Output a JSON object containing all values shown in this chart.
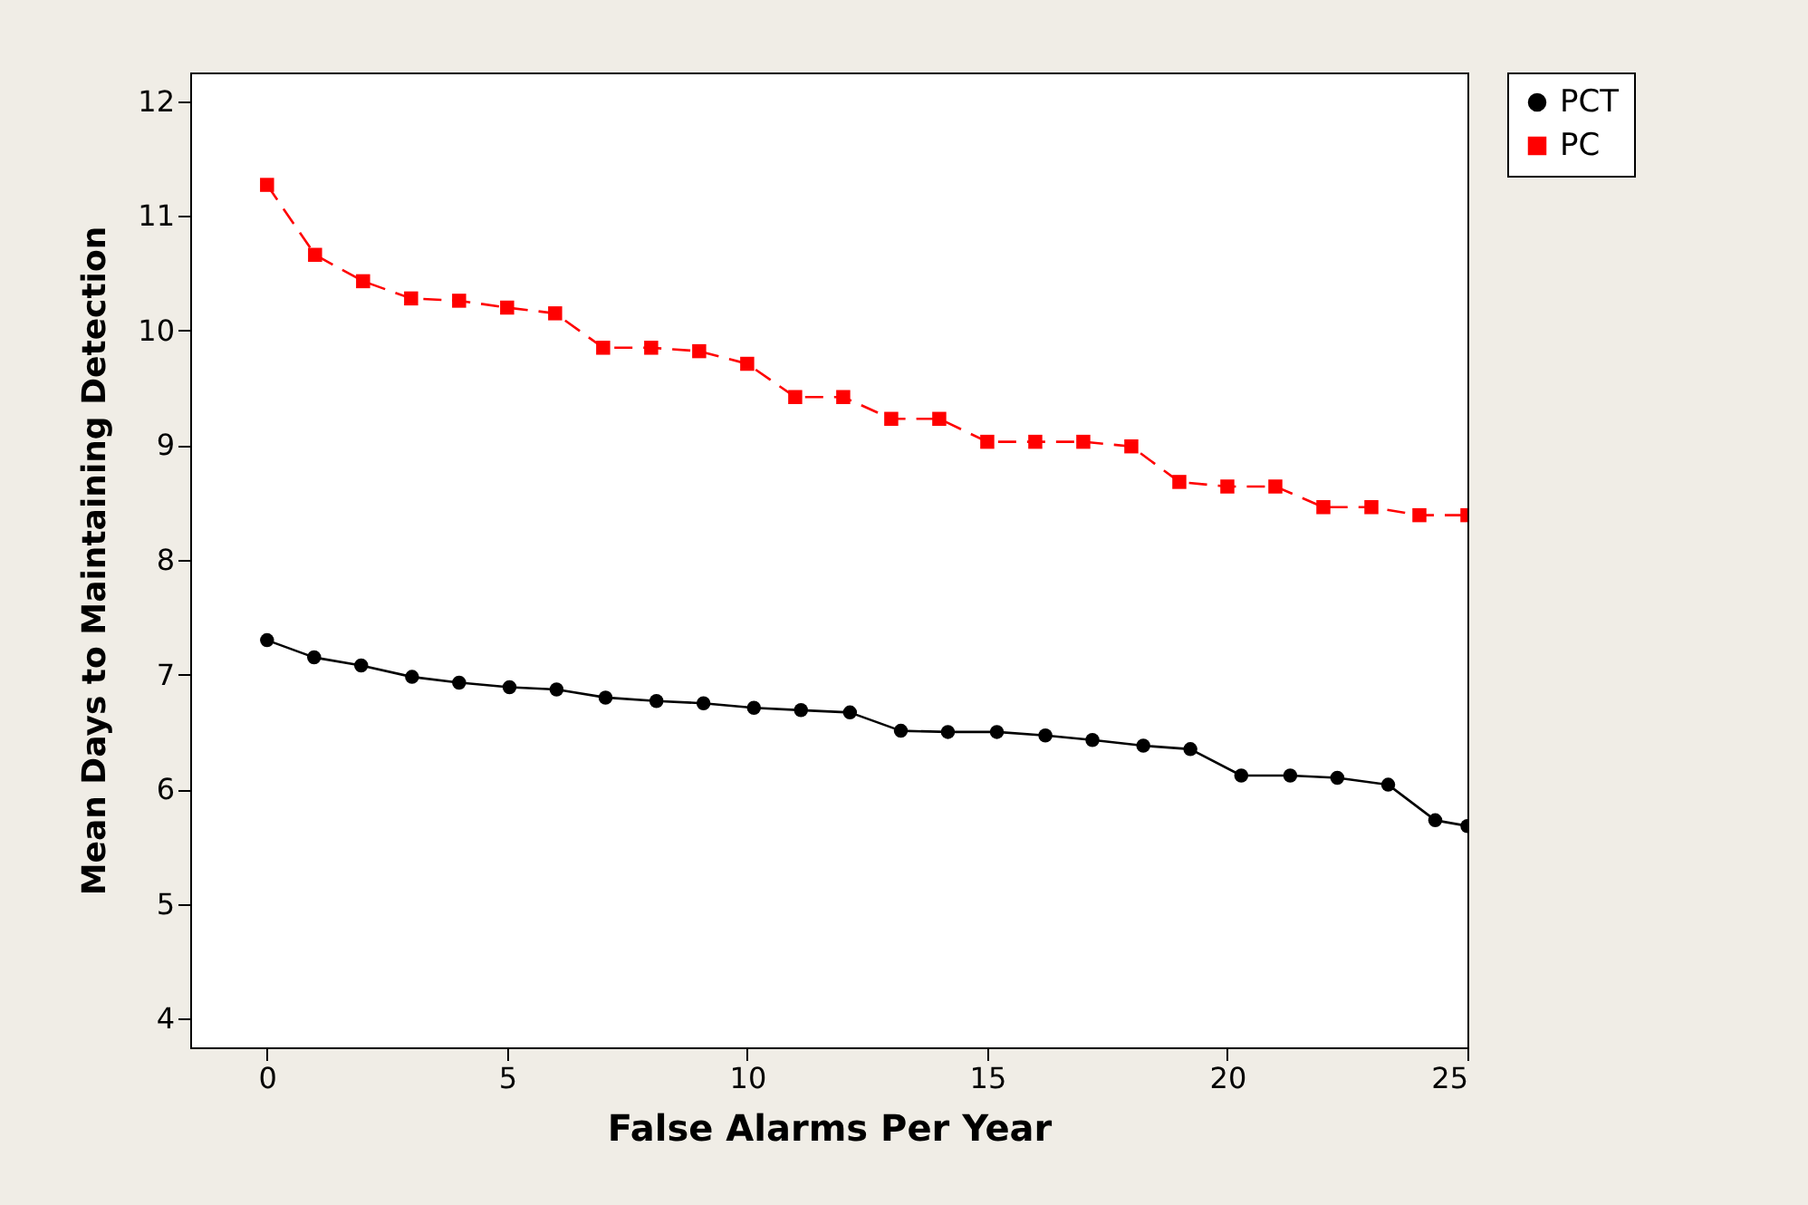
{
  "chart_data": {
    "type": "line",
    "xlabel": "False Alarms Per Year",
    "ylabel": "Mean Days to Maintaining Detection",
    "x": [
      0,
      1,
      2,
      3,
      4,
      5,
      6,
      7,
      8,
      9,
      10,
      11,
      12,
      13,
      14,
      15,
      16,
      17,
      18,
      19,
      20,
      21,
      22,
      23,
      24,
      25
    ],
    "series": [
      {
        "name": "PCT",
        "color": "#000000",
        "marker": "circle",
        "line_style": "solid",
        "x": [
          0,
          0.98,
          1.96,
          3.02,
          4.0,
          5.05,
          6.03,
          7.05,
          8.11,
          9.09,
          10.14,
          11.12,
          12.14,
          13.2,
          14.18,
          15.2,
          16.21,
          17.19,
          18.25,
          19.23,
          20.29,
          21.31,
          22.29,
          23.35,
          24.33,
          25
        ],
        "values": [
          7.3,
          7.15,
          7.08,
          6.98,
          6.93,
          6.89,
          6.87,
          6.8,
          6.77,
          6.75,
          6.71,
          6.69,
          6.67,
          6.51,
          6.5,
          6.5,
          6.47,
          6.43,
          6.38,
          6.35,
          6.12,
          6.12,
          6.1,
          6.04,
          5.73,
          5.68
        ]
      },
      {
        "name": "PC",
        "color": "#ff0000",
        "marker": "square",
        "line_style": "dashed",
        "values": [
          11.27,
          10.66,
          10.43,
          10.28,
          10.26,
          10.2,
          10.15,
          9.85,
          9.85,
          9.82,
          9.71,
          9.42,
          9.42,
          9.23,
          9.23,
          9.03,
          9.03,
          9.03,
          8.99,
          8.68,
          8.64,
          8.64,
          8.46,
          8.46,
          8.39,
          8.39
        ]
      }
    ],
    "xlim": [
      -1.6,
      25
    ],
    "xticks": [
      0,
      5,
      10,
      15,
      20,
      25
    ],
    "ylim": [
      3.75,
      12.25
    ],
    "yticks": [
      4,
      5,
      6,
      7,
      8,
      9,
      10,
      11,
      12
    ],
    "grid": false,
    "legend": "top right"
  }
}
